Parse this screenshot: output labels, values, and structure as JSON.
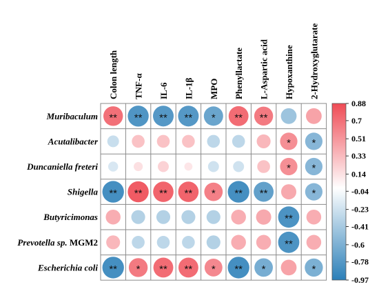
{
  "chart_data": {
    "type": "heatmap",
    "subtype": "correlation-circle-matrix",
    "columns": [
      "Colon length",
      "TNF-α",
      "IL-6",
      "IL-1β",
      "MPO",
      "Phenyllactate",
      "L-Aspartic acid",
      "Hypoxanthine",
      "2-Hydroxyglutarate"
    ],
    "rows": [
      {
        "label": "Muribaculum",
        "italic": "Muribaculum",
        "suffix": ""
      },
      {
        "label": "Acutalibacter",
        "italic": "Acutalibacter",
        "suffix": ""
      },
      {
        "label": "Duncaniella freteri",
        "italic": "Duncaniella freteri",
        "suffix": ""
      },
      {
        "label": "Shigella",
        "italic": "Shigella",
        "suffix": ""
      },
      {
        "label": "Butyricimonas",
        "italic": "Butyricimonas",
        "suffix": ""
      },
      {
        "label": "Prevotella sp. MGM2",
        "italic": "Prevotella sp.",
        "suffix": " MGM2"
      },
      {
        "label": "Escherichia coli",
        "italic": "Escherichia coli",
        "suffix": ""
      }
    ],
    "values": [
      [
        0.7,
        -0.8,
        -0.78,
        -0.78,
        -0.68,
        0.72,
        0.65,
        -0.45,
        0.45
      ],
      [
        -0.25,
        0.3,
        0.3,
        0.3,
        -0.3,
        -0.3,
        0.35,
        0.55,
        -0.55
      ],
      [
        -0.18,
        0.15,
        0.22,
        0.12,
        -0.22,
        -0.22,
        0.3,
        0.55,
        -0.55
      ],
      [
        -0.85,
        0.8,
        0.76,
        0.76,
        0.62,
        -0.85,
        -0.72,
        0.42,
        -0.55
      ],
      [
        0.4,
        -0.35,
        -0.35,
        -0.35,
        -0.35,
        0.4,
        0.42,
        -0.82,
        0.4
      ],
      [
        0.35,
        -0.3,
        -0.3,
        -0.3,
        -0.35,
        0.4,
        0.4,
        -0.82,
        0.4
      ],
      [
        -0.85,
        0.65,
        0.72,
        0.72,
        0.58,
        -0.85,
        -0.62,
        0.45,
        -0.6
      ]
    ],
    "significance": [
      [
        "**",
        "**",
        "**",
        "**",
        "*",
        "**",
        "**",
        "",
        ""
      ],
      [
        "",
        "",
        "",
        "",
        "",
        "",
        "",
        "*",
        "*"
      ],
      [
        "",
        "",
        "",
        "",
        "",
        "",
        "",
        "*",
        "*"
      ],
      [
        "**",
        "**",
        "**",
        "**",
        "*",
        "**",
        "**",
        "",
        "*"
      ],
      [
        "",
        "",
        "",
        "",
        "",
        "",
        "",
        "**",
        ""
      ],
      [
        "",
        "",
        "",
        "",
        "",
        "",
        "",
        "**",
        ""
      ],
      [
        "**",
        "*",
        "**",
        "**",
        "*",
        "**",
        "*",
        "",
        "*"
      ]
    ],
    "colorbar": {
      "min": -0.97,
      "max": 0.88,
      "ticks": [
        "0.88",
        "0.7",
        "0.51",
        "0.33",
        "0.14",
        "-0.04",
        "-0.23",
        "-0.41",
        "-0.6",
        "-0.78",
        "-0.97"
      ],
      "tick_values": [
        0.88,
        0.7,
        0.51,
        0.33,
        0.14,
        -0.04,
        -0.23,
        -0.41,
        -0.6,
        -0.78,
        -0.97
      ],
      "colors": {
        "negative": "#2b7fb8",
        "neutral": "#ffffff",
        "positive": "#ef4b55"
      }
    },
    "grid": true,
    "legend_position": "right"
  }
}
